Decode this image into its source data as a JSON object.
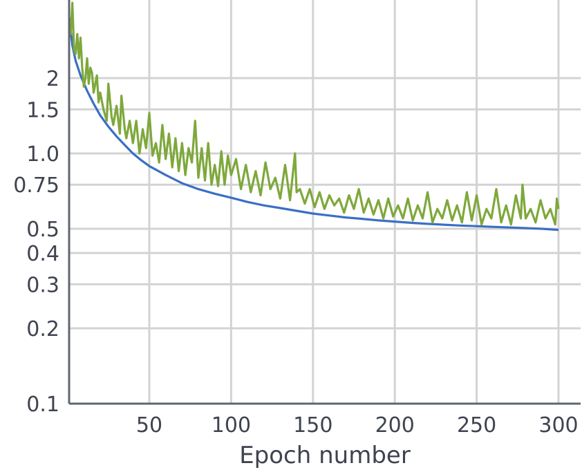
{
  "chart_data": {
    "type": "line",
    "xlabel": "Epoch number",
    "ylabel": "",
    "x_scale": "linear",
    "y_scale": "log",
    "xlim": [
      1,
      300
    ],
    "ylim": [
      0.1,
      3.5
    ],
    "grid": true,
    "legend": "none",
    "xticks": [
      {
        "value": 50,
        "label": "50"
      },
      {
        "value": 100,
        "label": "100"
      },
      {
        "value": 150,
        "label": "150"
      },
      {
        "value": 200,
        "label": "200"
      },
      {
        "value": 250,
        "label": "250"
      },
      {
        "value": 300,
        "label": "300"
      }
    ],
    "yticks": [
      {
        "value": 0.1,
        "label": "0.1"
      },
      {
        "value": 0.2,
        "label": "0.2"
      },
      {
        "value": 0.3,
        "label": "0.3"
      },
      {
        "value": 0.4,
        "label": "0.4"
      },
      {
        "value": 0.5,
        "label": "0.5"
      },
      {
        "value": 0.75,
        "label": "0.75"
      },
      {
        "value": 1.0,
        "label": "1.0"
      },
      {
        "value": 1.5,
        "label": "1.5"
      },
      {
        "value": 2,
        "label": "2"
      }
    ],
    "series": [
      {
        "color": "#3a6fc4",
        "x": [
          1,
          3,
          5,
          8,
          12,
          16,
          20,
          25,
          30,
          35,
          40,
          45,
          50,
          60,
          70,
          80,
          90,
          100,
          110,
          120,
          130,
          140,
          150,
          160,
          170,
          180,
          190,
          200,
          210,
          220,
          230,
          240,
          250,
          260,
          270,
          280,
          290,
          300
        ],
        "y": [
          3.5,
          2.7,
          2.35,
          2.05,
          1.78,
          1.58,
          1.42,
          1.28,
          1.17,
          1.08,
          1.0,
          0.94,
          0.89,
          0.82,
          0.76,
          0.72,
          0.69,
          0.665,
          0.64,
          0.62,
          0.605,
          0.59,
          0.575,
          0.565,
          0.555,
          0.548,
          0.54,
          0.534,
          0.528,
          0.523,
          0.519,
          0.515,
          0.512,
          0.509,
          0.506,
          0.503,
          0.5,
          0.495
        ]
      },
      {
        "color": "#7ea83c",
        "x": [
          1,
          2,
          3,
          4,
          5,
          6,
          7,
          8,
          9,
          10,
          11,
          12,
          13,
          14,
          15,
          16,
          17,
          18,
          19,
          20,
          22,
          24,
          25,
          27,
          28,
          30,
          32,
          33,
          35,
          36,
          38,
          40,
          42,
          44,
          46,
          48,
          50,
          52,
          54,
          56,
          58,
          60,
          62,
          64,
          66,
          68,
          70,
          72,
          74,
          76,
          78,
          80,
          82,
          84,
          86,
          88,
          90,
          92,
          94,
          96,
          98,
          100,
          103,
          106,
          109,
          112,
          115,
          118,
          121,
          124,
          127,
          130,
          133,
          136,
          139,
          140,
          142,
          145,
          148,
          151,
          154,
          157,
          160,
          163,
          166,
          169,
          172,
          175,
          178,
          181,
          184,
          187,
          190,
          193,
          196,
          199,
          202,
          205,
          208,
          211,
          214,
          217,
          220,
          223,
          226,
          229,
          232,
          235,
          238,
          241,
          244,
          247,
          250,
          253,
          256,
          259,
          262,
          265,
          268,
          271,
          274,
          277,
          278,
          280,
          283,
          286,
          289,
          292,
          295,
          298,
          299,
          300
        ],
        "y": [
          3.5,
          3.0,
          4.0,
          2.6,
          2.5,
          3.0,
          2.4,
          2.9,
          2.2,
          1.85,
          2.0,
          2.4,
          1.9,
          2.2,
          2.1,
          1.75,
          1.9,
          2.05,
          1.6,
          1.75,
          1.5,
          1.35,
          1.9,
          1.4,
          1.3,
          1.55,
          1.2,
          1.7,
          1.25,
          1.15,
          1.35,
          1.1,
          1.35,
          1.0,
          1.25,
          1.05,
          1.45,
          0.98,
          1.1,
          0.92,
          1.3,
          0.95,
          1.2,
          0.88,
          1.15,
          0.85,
          1.1,
          0.82,
          1.05,
          0.92,
          1.35,
          0.8,
          1.05,
          0.78,
          1.1,
          0.75,
          0.9,
          0.74,
          1.02,
          0.75,
          0.98,
          0.82,
          0.95,
          0.72,
          0.9,
          0.7,
          0.85,
          0.68,
          0.92,
          0.72,
          0.8,
          0.66,
          0.9,
          0.65,
          1.0,
          0.7,
          0.72,
          0.63,
          0.72,
          0.61,
          0.7,
          0.6,
          0.68,
          0.62,
          0.66,
          0.58,
          0.68,
          0.6,
          0.72,
          0.58,
          0.66,
          0.57,
          0.65,
          0.55,
          0.66,
          0.56,
          0.62,
          0.55,
          0.66,
          0.54,
          0.62,
          0.55,
          0.7,
          0.53,
          0.6,
          0.55,
          0.65,
          0.54,
          0.62,
          0.53,
          0.7,
          0.54,
          0.68,
          0.52,
          0.6,
          0.55,
          0.72,
          0.53,
          0.62,
          0.52,
          0.68,
          0.55,
          0.75,
          0.55,
          0.6,
          0.53,
          0.65,
          0.55,
          0.6,
          0.52,
          0.66,
          0.6
        ]
      }
    ]
  }
}
